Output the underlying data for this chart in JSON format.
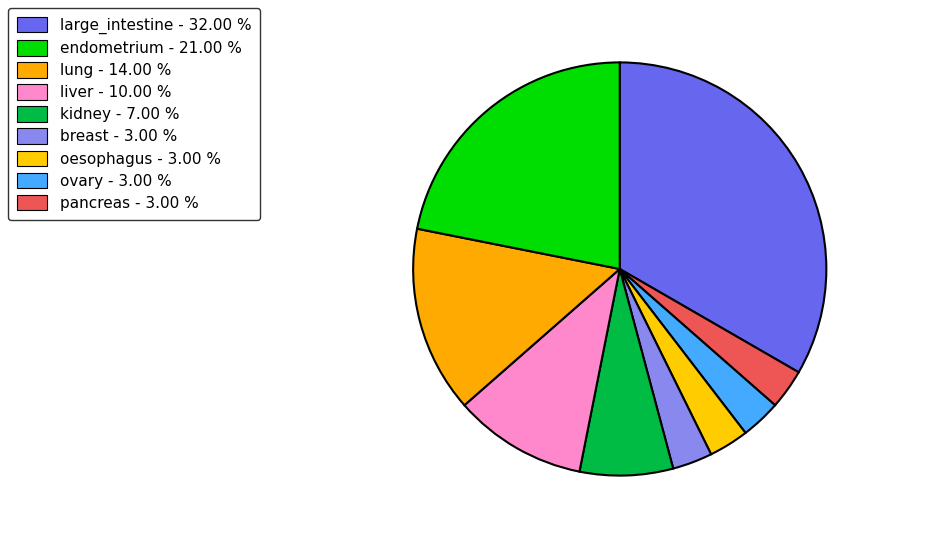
{
  "labels": [
    "large_intestine",
    "pancreas",
    "ovary",
    "oesophagus",
    "breast",
    "kidney",
    "liver",
    "lung",
    "endometrium"
  ],
  "values": [
    32.0,
    3.0,
    3.0,
    3.0,
    3.0,
    7.0,
    10.0,
    14.0,
    21.0
  ],
  "colors": [
    "#6666ee",
    "#ee5555",
    "#44aaff",
    "#ffcc00",
    "#8888ee",
    "#00bb44",
    "#ff88cc",
    "#ffaa00",
    "#00dd00"
  ],
  "legend_labels": [
    "large_intestine - 32.00 %",
    "endometrium - 21.00 %",
    "lung - 14.00 %",
    "liver - 10.00 %",
    "kidney - 7.00 %",
    "breast - 3.00 %",
    "oesophagus - 3.00 %",
    "ovary - 3.00 %",
    "pancreas - 3.00 %"
  ],
  "legend_colors": [
    "#6666ee",
    "#00dd00",
    "#ffaa00",
    "#ff88cc",
    "#00bb44",
    "#8888ee",
    "#ffcc00",
    "#44aaff",
    "#ee5555"
  ],
  "startangle": 90,
  "figsize": [
    9.39,
    5.38
  ],
  "dpi": 100
}
